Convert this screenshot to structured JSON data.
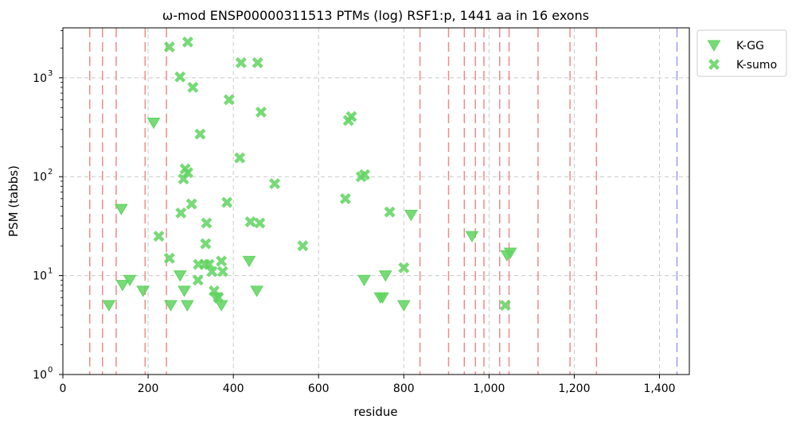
{
  "chart_data": {
    "type": "scatter",
    "title": "ω-mod ENSP00000311513 PTMs (log) RSF1:p, 1441 aa in 16 exons",
    "xlabel": "residue",
    "ylabel": "PSM (tabbs)",
    "xlim": [
      0,
      1470
    ],
    "ylim": [
      1,
      3200
    ],
    "yscale": "log",
    "grid": true,
    "legend_position": "outside-top-right",
    "x_ticks": [
      {
        "value": 0,
        "label": "0"
      },
      {
        "value": 200,
        "label": "200"
      },
      {
        "value": 400,
        "label": "400"
      },
      {
        "value": 600,
        "label": "600"
      },
      {
        "value": 800,
        "label": "800"
      },
      {
        "value": 1000,
        "label": "1,000"
      },
      {
        "value": 1200,
        "label": "1,200"
      },
      {
        "value": 1400,
        "label": "1,400"
      }
    ],
    "y_ticks": [
      {
        "value": 1,
        "base": "10",
        "exp": "0"
      },
      {
        "value": 10,
        "base": "10",
        "exp": "1"
      },
      {
        "value": 100,
        "base": "10",
        "exp": "2"
      },
      {
        "value": 1000,
        "base": "10",
        "exp": "3"
      }
    ],
    "exon_boundaries": [
      63,
      93,
      125,
      193,
      243,
      838,
      905,
      942,
      968,
      988,
      1025,
      1047,
      1115,
      1190,
      1252
    ],
    "protein_end": 1441,
    "colors": {
      "series": "#5fd35f",
      "exon_line": "#f08a8a",
      "end_line": "#9b9bf0",
      "grid": "#c8c8c8"
    },
    "series": [
      {
        "name": "K-GG",
        "marker": "triangle-down",
        "points": [
          [
            108,
            5
          ],
          [
            137,
            47
          ],
          [
            140,
            8
          ],
          [
            157,
            9
          ],
          [
            188,
            7
          ],
          [
            213,
            350
          ],
          [
            253,
            5
          ],
          [
            275,
            10
          ],
          [
            285,
            7
          ],
          [
            292,
            5
          ],
          [
            360,
            6
          ],
          [
            372,
            5
          ],
          [
            437,
            14
          ],
          [
            455,
            7
          ],
          [
            707,
            9
          ],
          [
            745,
            6
          ],
          [
            750,
            6
          ],
          [
            757,
            10
          ],
          [
            800,
            5
          ],
          [
            817,
            41
          ],
          [
            960,
            25
          ],
          [
            1042,
            16
          ],
          [
            1050,
            17
          ]
        ]
      },
      {
        "name": "K-sumo",
        "marker": "x",
        "points": [
          [
            250,
            2050
          ],
          [
            293,
            2300
          ],
          [
            275,
            1020
          ],
          [
            305,
            800
          ],
          [
            390,
            600
          ],
          [
            418,
            1420
          ],
          [
            457,
            1420
          ],
          [
            465,
            450
          ],
          [
            322,
            270
          ],
          [
            415,
            155
          ],
          [
            670,
            370
          ],
          [
            677,
            405
          ],
          [
            700,
            100
          ],
          [
            708,
            105
          ],
          [
            283,
            95
          ],
          [
            287,
            120
          ],
          [
            293,
            110
          ],
          [
            302,
            53
          ],
          [
            277,
            43
          ],
          [
            337,
            34
          ],
          [
            385,
            55
          ],
          [
            440,
            35
          ],
          [
            462,
            34
          ],
          [
            497,
            85
          ],
          [
            663,
            60
          ],
          [
            767,
            44
          ],
          [
            225,
            25
          ],
          [
            250,
            15
          ],
          [
            335,
            21
          ],
          [
            563,
            20
          ],
          [
            318,
            13
          ],
          [
            333,
            13
          ],
          [
            343,
            13
          ],
          [
            350,
            11
          ],
          [
            372,
            14
          ],
          [
            375,
            11
          ],
          [
            317,
            9
          ],
          [
            355,
            7
          ],
          [
            365,
            6
          ],
          [
            800,
            12
          ],
          [
            1038,
            5
          ]
        ]
      }
    ]
  }
}
